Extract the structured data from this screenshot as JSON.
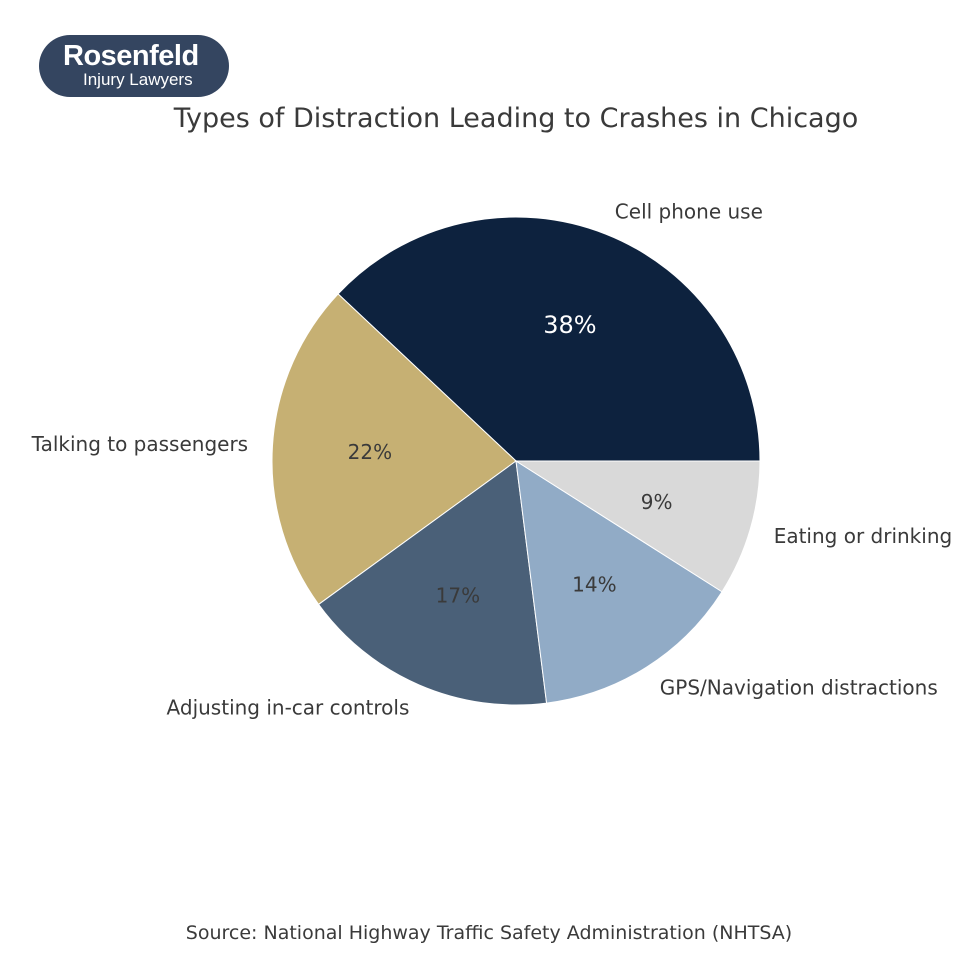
{
  "logo": {
    "name": "Rosenfeld",
    "tagline": "Injury Lawyers"
  },
  "chart_data": {
    "type": "pie",
    "title": "Types of Distraction Leading to Crashes in Chicago",
    "source": "Source: National Highway Traffic Safety Administration (NHTSA)",
    "slices": [
      {
        "label": "Cell phone use",
        "value": 38,
        "display": "38%",
        "color": "#0d223e",
        "text_color": "#ffffff"
      },
      {
        "label": "Talking to passengers",
        "value": 22,
        "display": "22%",
        "color": "#c6b073",
        "text_color": "#3a3a3a"
      },
      {
        "label": "Adjusting in-car controls",
        "value": 17,
        "display": "17%",
        "color": "#4a6078",
        "text_color": "#3a3a3a"
      },
      {
        "label": "GPS/Navigation distractions",
        "value": 14,
        "display": "14%",
        "color": "#91abc6",
        "text_color": "#3a3a3a"
      },
      {
        "label": "Eating or drinking",
        "value": 9,
        "display": "9%",
        "color": "#d9d9d9",
        "text_color": "#3a3a3a"
      }
    ],
    "start_angle_deg": 0,
    "direction": "counterclockwise"
  }
}
